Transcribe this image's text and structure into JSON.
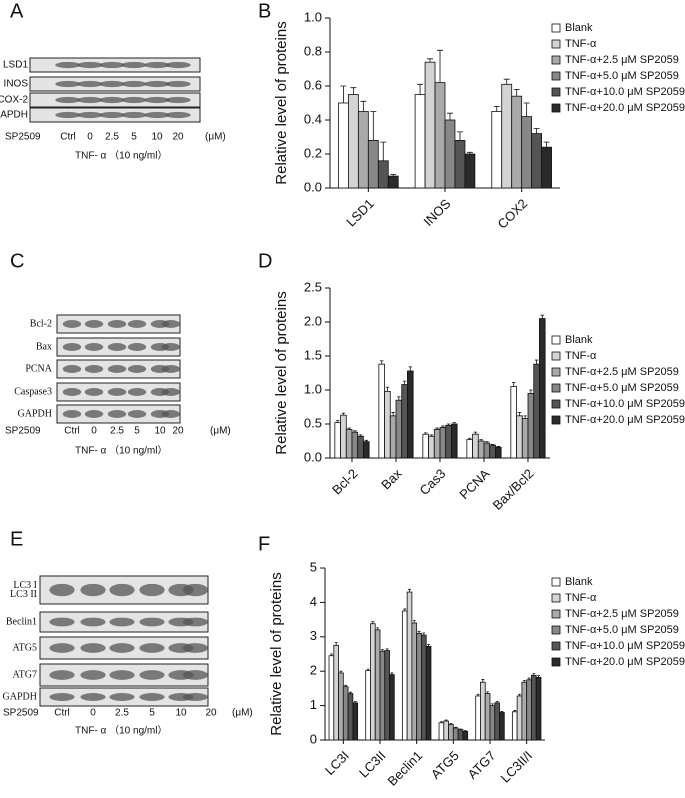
{
  "blots": [
    {
      "letter": "A",
      "proteins": [
        "LSD1",
        "INOS",
        "COX-2",
        "GAPDH"
      ],
      "treatment": "SP2509",
      "lanes": [
        "Ctrl",
        "0",
        "2.5",
        "5",
        "10",
        "20"
      ],
      "unit": "(μM)",
      "condition": "TNF- α （10 ng/ml）"
    },
    {
      "letter": "C",
      "proteins": [
        "Bcl-2",
        "Bax",
        "PCNA",
        "Caspase3",
        "GAPDH"
      ],
      "treatment": "SP2509",
      "lanes": [
        "Ctrl",
        "0",
        "2.5",
        "5",
        "10",
        "20"
      ],
      "unit": "(μM)",
      "condition": "TNF- α （10 ng/ml）"
    },
    {
      "letter": "E",
      "proteins": [
        "LC3 I",
        "LC3 II",
        "Beclin1",
        "ATG5",
        "ATG7",
        "GAPDH"
      ],
      "treatment": "SP2509",
      "lanes": [
        "Ctrl",
        "0",
        "2.5",
        "5",
        "10",
        "20"
      ],
      "unit": "(μM)",
      "condition": "TNF- α （10 ng/ml）"
    }
  ],
  "chart_data": [
    {
      "type": "bar",
      "panel": "B",
      "y_label": "Relative level of proteins",
      "categories": [
        "LSD1",
        "INOS",
        "COX2"
      ],
      "ylim": [
        0,
        1
      ],
      "yticks": [
        {
          "value": 0,
          "label": "0.0"
        },
        0.2,
        0.4,
        0.6,
        0.8,
        {
          "value": 1,
          "label": "1.0"
        }
      ],
      "legend": "right",
      "series": [
        {
          "name": "Blank",
          "color": "#ffffff",
          "values": [
            0.5,
            0.55,
            0.45
          ],
          "errors": [
            0.1,
            0.06,
            0.03
          ]
        },
        {
          "name": "TNF-α",
          "color": "#d4d4d4",
          "values": [
            0.55,
            0.74,
            0.61
          ],
          "errors": [
            0.04,
            0.02,
            0.03
          ]
        },
        {
          "name": "TNF-α+2.5 μM SP2059",
          "color": "#aaaaaa",
          "values": [
            0.45,
            0.62,
            0.54
          ],
          "errors": [
            0.06,
            0.19,
            0.04
          ]
        },
        {
          "name": "TNF-α+5.0 μM SP2059",
          "color": "#888888",
          "values": [
            0.28,
            0.4,
            0.42
          ],
          "errors": [
            0.17,
            0.04,
            0.08
          ]
        },
        {
          "name": "TNF-α+10.0 μM SP2059",
          "color": "#555555",
          "values": [
            0.16,
            0.28,
            0.32
          ],
          "errors": [
            0.11,
            0.05,
            0.03
          ]
        },
        {
          "name": "TNF-α+20.0 μM SP2059",
          "color": "#2a2a2a",
          "values": [
            0.07,
            0.2,
            0.24
          ],
          "errors": [
            0.01,
            0.01,
            0.03
          ]
        }
      ]
    },
    {
      "type": "bar",
      "panel": "D",
      "y_label": "Relative level of proteins",
      "categories": [
        "Bcl-2",
        "Bax",
        "Cas3",
        "PCNA",
        "Bax/Bcl2"
      ],
      "ylim": [
        0,
        2.5
      ],
      "yticks": [
        {
          "value": 0,
          "label": "0.0"
        },
        0.5,
        {
          "value": 1,
          "label": "1.0"
        },
        1.5,
        {
          "value": 2,
          "label": "2.0"
        },
        2.5
      ],
      "legend": "right",
      "series": [
        {
          "name": "Blank",
          "color": "#ffffff",
          "values": [
            0.52,
            1.38,
            0.35,
            0.27,
            1.05
          ],
          "errors": [
            0.03,
            0.05,
            0.02,
            0.02,
            0.06
          ]
        },
        {
          "name": "TNF-α",
          "color": "#d4d4d4",
          "values": [
            0.63,
            0.98,
            0.32,
            0.35,
            0.62
          ],
          "errors": [
            0.03,
            0.06,
            0.02,
            0.03,
            0.05
          ]
        },
        {
          "name": "TNF-α+2.5 μM SP2059",
          "color": "#aaaaaa",
          "values": [
            0.42,
            0.62,
            0.42,
            0.25,
            0.58
          ],
          "errors": [
            0.02,
            0.05,
            0.02,
            0.02,
            0.04
          ]
        },
        {
          "name": "TNF-α+5.0 μM SP2059",
          "color": "#888888",
          "values": [
            0.38,
            0.85,
            0.45,
            0.22,
            0.95
          ],
          "errors": [
            0.02,
            0.05,
            0.02,
            0.02,
            0.05
          ]
        },
        {
          "name": "TNF-α+10.0 μM SP2059",
          "color": "#555555",
          "values": [
            0.32,
            1.08,
            0.48,
            0.19,
            1.38
          ],
          "errors": [
            0.02,
            0.05,
            0.02,
            0.01,
            0.06
          ]
        },
        {
          "name": "TNF-α+20.0 μM SP2059",
          "color": "#2a2a2a",
          "values": [
            0.24,
            1.28,
            0.5,
            0.16,
            2.05
          ],
          "errors": [
            0.02,
            0.06,
            0.02,
            0.01,
            0.05
          ]
        }
      ]
    },
    {
      "type": "bar",
      "panel": "F",
      "y_label": "Relative level of proteins",
      "categories": [
        "LC3I",
        "LC3II",
        "Beclin1",
        "ATG5",
        "ATG7",
        "LC3II/I"
      ],
      "ylim": [
        0,
        5
      ],
      "yticks": [
        0,
        1,
        2,
        3,
        4,
        5
      ],
      "legend": "right",
      "series": [
        {
          "name": "Blank",
          "color": "#ffffff",
          "values": [
            2.45,
            2.02,
            3.75,
            0.5,
            1.28,
            0.82
          ],
          "errors": [
            0.05,
            0.04,
            0.06,
            0.03,
            0.05,
            0.04
          ]
        },
        {
          "name": "TNF-α",
          "color": "#d4d4d4",
          "values": [
            2.75,
            3.38,
            4.3,
            0.55,
            1.68,
            1.28
          ],
          "errors": [
            0.08,
            0.06,
            0.08,
            0.03,
            0.08,
            0.05
          ]
        },
        {
          "name": "TNF-α+2.5 μM SP2059",
          "color": "#aaaaaa",
          "values": [
            1.95,
            3.2,
            3.4,
            0.45,
            1.35,
            1.68
          ],
          "errors": [
            0.05,
            0.06,
            0.07,
            0.03,
            0.05,
            0.05
          ]
        },
        {
          "name": "TNF-α+5.0 μM SP2059",
          "color": "#888888",
          "values": [
            1.55,
            2.58,
            3.1,
            0.35,
            1.0,
            1.75
          ],
          "errors": [
            0.04,
            0.05,
            0.06,
            0.02,
            0.05,
            0.05
          ]
        },
        {
          "name": "TNF-α+10.0 μM SP2059",
          "color": "#555555",
          "values": [
            1.35,
            2.6,
            3.05,
            0.3,
            1.08,
            1.88
          ],
          "errors": [
            0.04,
            0.05,
            0.06,
            0.02,
            0.04,
            0.05
          ]
        },
        {
          "name": "TNF-α+20.0 μM SP2059",
          "color": "#2a2a2a",
          "values": [
            1.08,
            1.9,
            2.72,
            0.25,
            0.8,
            1.82
          ],
          "errors": [
            0.04,
            0.05,
            0.06,
            0.02,
            0.03,
            0.05
          ]
        }
      ]
    }
  ]
}
